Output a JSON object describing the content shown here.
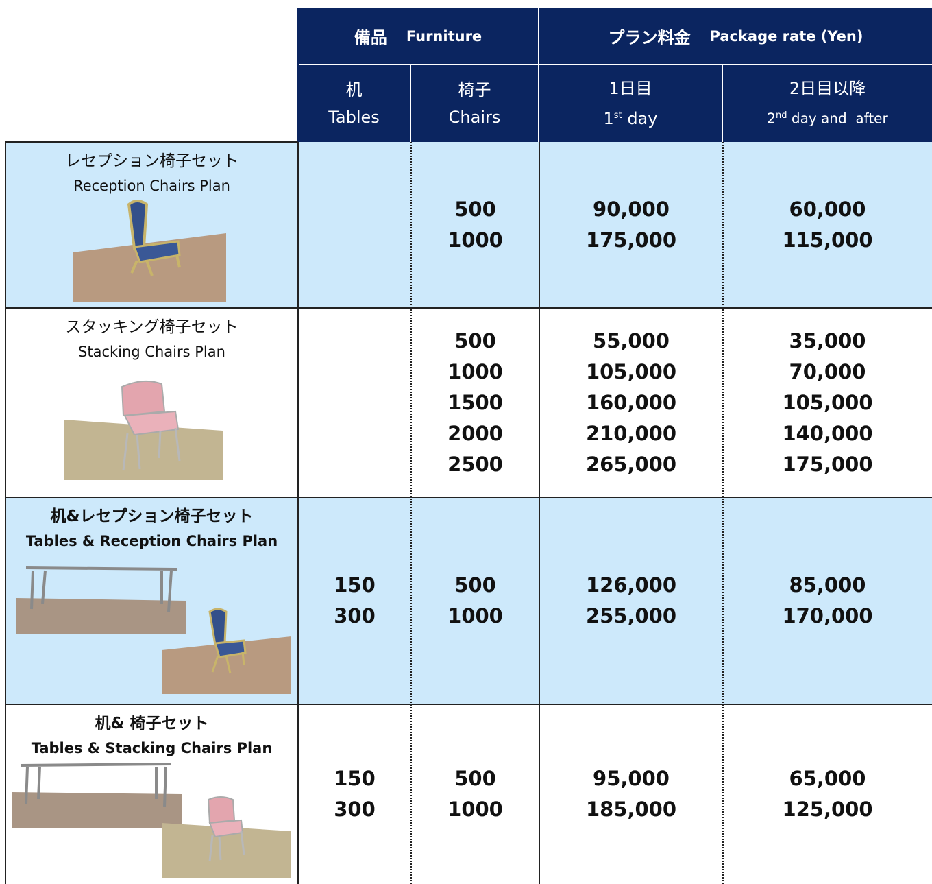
{
  "header": {
    "furniture_ja": "備品",
    "furniture_en": "Furniture",
    "rate_ja": "プラン料金",
    "rate_en": "Package rate (Yen)"
  },
  "columns": {
    "tables": {
      "ja": "机",
      "en": "Tables"
    },
    "chairs": {
      "ja": "椅子",
      "en": "Chairs"
    },
    "day1": {
      "ja": "1日目",
      "num": "1",
      "sup": "st",
      "rest": "day"
    },
    "day2": {
      "ja": "2日目以降",
      "num": "2",
      "sup": "nd",
      "rest": "day and  after"
    }
  },
  "rows": [
    {
      "name_ja": "レセプション椅子セット",
      "name_en": "Reception Chairs Plan",
      "bold": false,
      "tables": [],
      "chairs": [
        500,
        1000
      ],
      "day1": [
        "90,000",
        "175,000"
      ],
      "day2": [
        "60,000",
        "115,000"
      ]
    },
    {
      "name_ja": "スタッキング椅子セット",
      "name_en": "Stacking Chairs Plan",
      "bold": false,
      "tables": [],
      "chairs": [
        500,
        1000,
        1500,
        2000,
        2500
      ],
      "day1": [
        "55,000",
        "105,000",
        "160,000",
        "210,000",
        "265,000"
      ],
      "day2": [
        "35,000",
        "70,000",
        "105,000",
        "140,000",
        "175,000"
      ]
    },
    {
      "name_ja": "机&レセプション椅子セット",
      "name_en": "Tables & Reception Chairs Plan",
      "bold": true,
      "tables": [
        150,
        300
      ],
      "chairs": [
        500,
        1000
      ],
      "day1": [
        "126,000",
        "255,000"
      ],
      "day2": [
        "85,000",
        "170,000"
      ]
    },
    {
      "name_ja": "机& 椅子セット",
      "name_en": "Tables & Stacking Chairs Plan",
      "bold": true,
      "tables": [
        150,
        300
      ],
      "chairs": [
        500,
        1000
      ],
      "day1": [
        "95,000",
        "185,000"
      ],
      "day2": [
        "65,000",
        "125,000"
      ]
    }
  ]
}
